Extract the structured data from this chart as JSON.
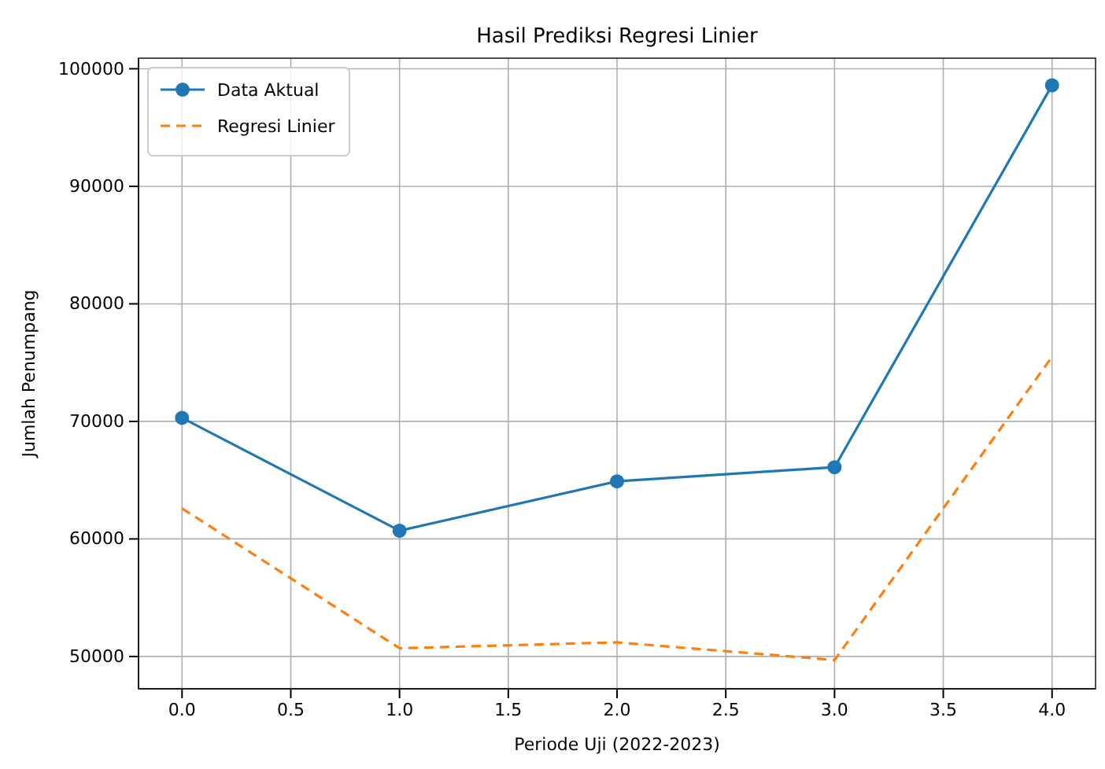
{
  "chart_data": {
    "type": "line",
    "title": "Hasil Prediksi Regresi Linier",
    "xlabel": "Periode Uji (2022-2023)",
    "ylabel": "Jumlah Penumpang",
    "x": [
      0,
      1,
      2,
      3,
      4
    ],
    "series": [
      {
        "name": "Data Aktual",
        "color": "#1f77b4",
        "values": [
          70300,
          60700,
          64900,
          66100,
          98600
        ],
        "marker": "circle",
        "line_style": "solid"
      },
      {
        "name": "Regresi Linier",
        "color": "#ff7f0e",
        "values": [
          62600,
          50700,
          51200,
          49700,
          75500
        ],
        "marker": "none",
        "line_style": "dashed"
      }
    ],
    "xlim": [
      -0.2,
      4.2
    ],
    "ylim": [
      47250,
      100900
    ],
    "xticks": [
      {
        "value": 0,
        "label": "0.0"
      },
      {
        "value": 0.5,
        "label": "0.5"
      },
      {
        "value": 1,
        "label": "1.0"
      },
      {
        "value": 1.5,
        "label": "1.5"
      },
      {
        "value": 2,
        "label": "2.0"
      },
      {
        "value": 2.5,
        "label": "2.5"
      },
      {
        "value": 3,
        "label": "3.0"
      },
      {
        "value": 3.5,
        "label": "3.5"
      },
      {
        "value": 4,
        "label": "4.0"
      }
    ],
    "yticks": [
      50000,
      60000,
      70000,
      80000,
      90000,
      100000
    ],
    "grid": true,
    "legend": "top left"
  }
}
